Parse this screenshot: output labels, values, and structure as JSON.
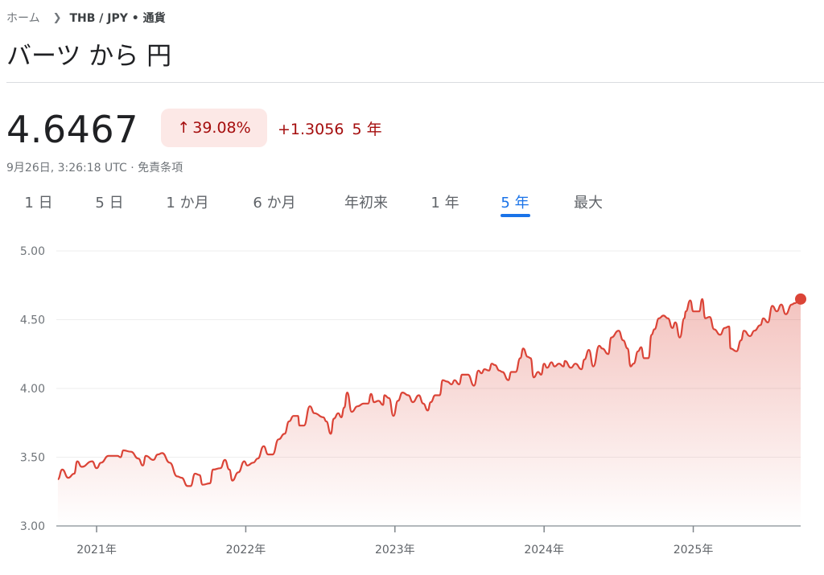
{
  "breadcrumb": {
    "home": "ホーム",
    "separator_icon": "chevron-right-icon",
    "current": "THB / JPY • 通貨"
  },
  "title": "バーツ から 円",
  "quote": {
    "price": "4.6467",
    "change_percent": "39.08%",
    "change_icon": "arrow-up-icon",
    "change_abs": "+1.3056",
    "period": "5 年",
    "timestamp": "9月26日, 3:26:18 UTC",
    "dot": "·",
    "disclaimer": "免責条項"
  },
  "colors": {
    "negative_text": "#a50e0e",
    "badge_bg": "#fce8e6",
    "line": "#db4437",
    "accent": "#1a73e8"
  },
  "tabs": [
    {
      "label": "1 日"
    },
    {
      "label": "5 日"
    },
    {
      "label": "1 か月"
    },
    {
      "label": "6 か月"
    },
    {
      "label": "年初来"
    },
    {
      "label": "1 年"
    },
    {
      "label": "5 年",
      "selected": true
    },
    {
      "label": "最大"
    }
  ],
  "chart_data": {
    "type": "area",
    "ylim": [
      3.0,
      5.0
    ],
    "xlim": [
      2020.73,
      2025.72
    ],
    "yticks": [
      "5.00",
      "4.50",
      "4.00",
      "3.50",
      "3.00"
    ],
    "xticks": [
      "2021年",
      "2022年",
      "2023年",
      "2024年",
      "2025年"
    ],
    "grid": true,
    "x": [
      2020.74,
      2020.77,
      2020.81,
      2020.85,
      2020.87,
      2020.9,
      2020.97,
      2021.0,
      2021.03,
      2021.08,
      2021.14,
      2021.16,
      2021.18,
      2021.23,
      2021.28,
      2021.31,
      2021.33,
      2021.38,
      2021.41,
      2021.44,
      2021.49,
      2021.54,
      2021.57,
      2021.61,
      2021.63,
      2021.66,
      2021.69,
      2021.71,
      2021.76,
      2021.78,
      2021.83,
      2021.86,
      2021.89,
      2021.91,
      2021.95,
      2021.99,
      2022.01,
      2022.05,
      2022.08,
      2022.12,
      2022.15,
      2022.18,
      2022.22,
      2022.26,
      2022.29,
      2022.32,
      2022.35,
      2022.36,
      2022.39,
      2022.43,
      2022.46,
      2022.52,
      2022.54,
      2022.57,
      2022.59,
      2022.62,
      2022.64,
      2022.66,
      2022.68,
      2022.71,
      2022.75,
      2022.79,
      2022.82,
      2022.84,
      2022.86,
      2022.89,
      2022.92,
      2022.93,
      2022.96,
      2022.99,
      2023.02,
      2023.05,
      2023.09,
      2023.12,
      2023.16,
      2023.19,
      2023.22,
      2023.24,
      2023.27,
      2023.3,
      2023.32,
      2023.35,
      2023.38,
      2023.4,
      2023.43,
      2023.45,
      2023.49,
      2023.53,
      2023.56,
      2023.58,
      2023.6,
      2023.63,
      2023.65,
      2023.67,
      2023.7,
      2023.72,
      2023.76,
      2023.78,
      2023.81,
      2023.84,
      2023.86,
      2023.89,
      2023.91,
      2023.93,
      2023.96,
      2023.98,
      2024.0,
      2024.02,
      2024.05,
      2024.07,
      2024.1,
      2024.13,
      2024.14,
      2024.18,
      2024.21,
      2024.25,
      2024.27,
      2024.3,
      2024.33,
      2024.37,
      2024.39,
      2024.43,
      2024.45,
      2024.5,
      2024.53,
      2024.56,
      2024.58,
      2024.6,
      2024.63,
      2024.65,
      2024.67,
      2024.7,
      2024.72,
      2024.74,
      2024.77,
      2024.8,
      2024.83,
      2024.86,
      2024.88,
      2024.91,
      2024.94,
      2024.95,
      2024.98,
      2025.0,
      2025.04,
      2025.06,
      2025.08,
      2025.11,
      2025.14,
      2025.18,
      2025.21,
      2025.24,
      2025.25,
      2025.29,
      2025.32,
      2025.34,
      2025.38,
      2025.41,
      2025.45,
      2025.47,
      2025.5,
      2025.53,
      2025.56,
      2025.59,
      2025.62,
      2025.66,
      2025.68,
      2025.72
    ],
    "values": [
      3.34,
      3.41,
      3.35,
      3.38,
      3.47,
      3.43,
      3.47,
      3.42,
      3.46,
      3.51,
      3.51,
      3.5,
      3.55,
      3.54,
      3.49,
      3.44,
      3.51,
      3.48,
      3.52,
      3.53,
      3.46,
      3.36,
      3.35,
      3.29,
      3.29,
      3.38,
      3.37,
      3.3,
      3.31,
      3.41,
      3.42,
      3.48,
      3.41,
      3.33,
      3.39,
      3.47,
      3.44,
      3.46,
      3.49,
      3.58,
      3.52,
      3.52,
      3.63,
      3.67,
      3.76,
      3.8,
      3.8,
      3.73,
      3.73,
      3.87,
      3.82,
      3.79,
      3.76,
      3.67,
      3.78,
      3.82,
      3.79,
      3.86,
      3.97,
      3.83,
      3.87,
      3.89,
      3.89,
      3.96,
      3.9,
      3.91,
      3.88,
      3.95,
      3.93,
      3.8,
      3.91,
      3.97,
      3.95,
      3.9,
      3.95,
      3.89,
      3.84,
      3.9,
      3.95,
      3.95,
      4.06,
      4.05,
      4.03,
      4.06,
      4.03,
      4.1,
      4.1,
      4.02,
      4.13,
      4.11,
      4.14,
      4.13,
      4.18,
      4.17,
      4.13,
      4.12,
      4.06,
      4.12,
      4.12,
      4.22,
      4.29,
      4.23,
      4.22,
      4.08,
      4.12,
      4.1,
      4.18,
      4.15,
      4.19,
      4.16,
      4.18,
      4.16,
      4.2,
      4.15,
      4.18,
      4.14,
      4.21,
      4.28,
      4.16,
      4.31,
      4.29,
      4.25,
      4.37,
      4.42,
      4.35,
      4.29,
      4.16,
      4.18,
      4.27,
      4.3,
      4.22,
      4.22,
      4.39,
      4.43,
      4.51,
      4.53,
      4.51,
      4.44,
      4.48,
      4.37,
      4.51,
      4.56,
      4.64,
      4.56,
      4.56,
      4.65,
      4.51,
      4.52,
      4.43,
      4.39,
      4.44,
      4.45,
      4.29,
      4.27,
      4.35,
      4.42,
      4.38,
      4.42,
      4.46,
      4.51,
      4.48,
      4.6,
      4.56,
      4.61,
      4.54,
      4.61,
      4.62,
      4.65
    ]
  }
}
